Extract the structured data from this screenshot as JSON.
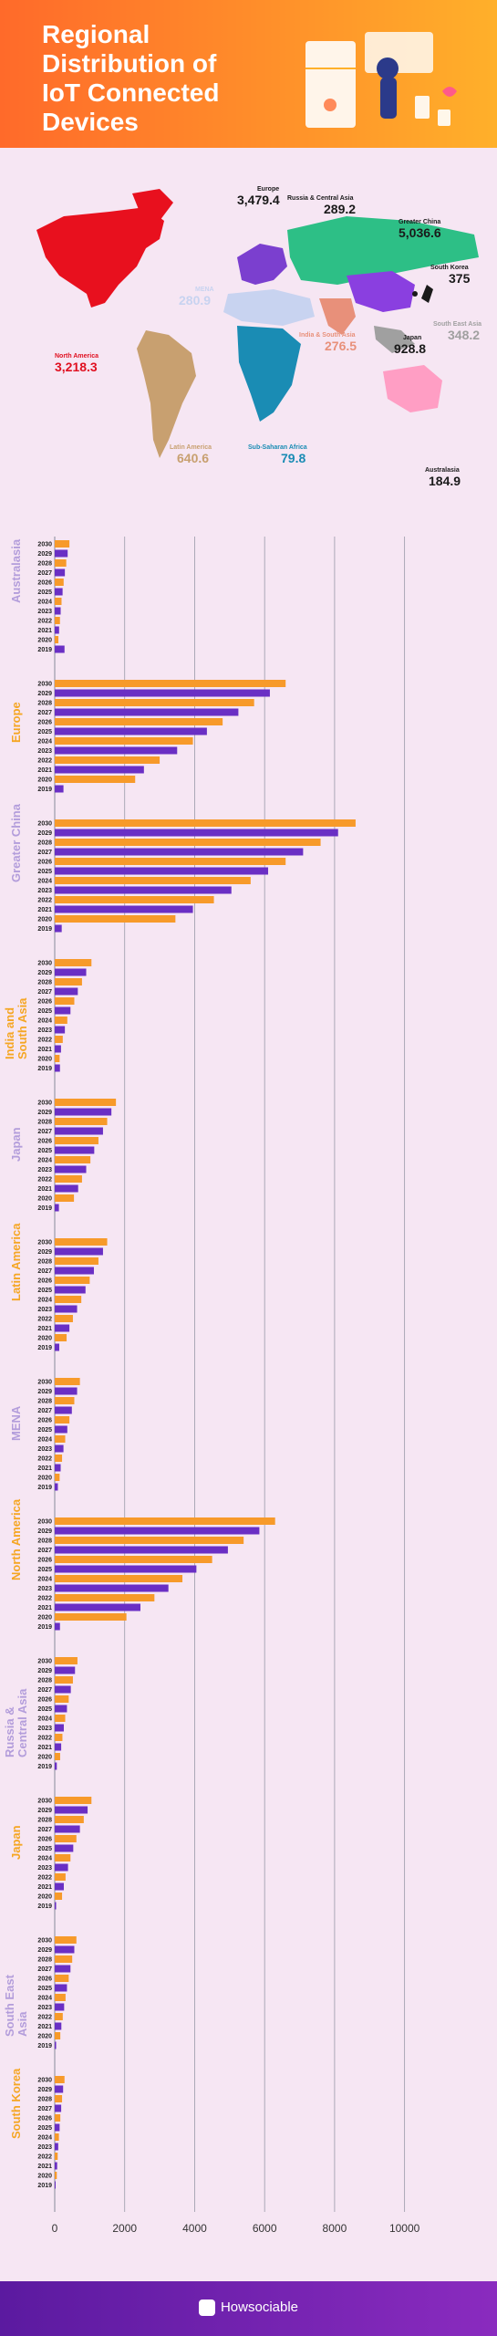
{
  "header": {
    "title_lines": [
      "Regional",
      "Distribution of",
      "IoT Connected",
      "Devices"
    ]
  },
  "map": {
    "regions": [
      {
        "name": "Russia & Central Asia",
        "value": "289.2",
        "color": "#1a1a1a"
      },
      {
        "name": "Europe",
        "value": "3,479.4",
        "color": "#1a1a1a"
      },
      {
        "name": "Greater China",
        "value": "5,036.6",
        "color": "#1a1a1a"
      },
      {
        "name": "South Korea",
        "value": "375",
        "color": "#1a1a1a"
      },
      {
        "name": "MENA",
        "value": "280.9",
        "color": "#c8d3f0"
      },
      {
        "name": "Japan",
        "value": "928.8",
        "color": "#1a1a1a"
      },
      {
        "name": "North America",
        "value": "3,218.3",
        "color": "#e01020"
      },
      {
        "name": "India & South Asia",
        "value": "276.5",
        "color": "#e8907a"
      },
      {
        "name": "South East Asia",
        "value": "348.2",
        "color": "#a0a0a0"
      },
      {
        "name": "Latin America",
        "value": "640.6",
        "color": "#c8a070"
      },
      {
        "name": "Sub-Saharan Africa",
        "value": "79.8",
        "color": "#1a8cb4"
      },
      {
        "name": "Australasia",
        "value": "184.9",
        "color": "#1a1a1a"
      }
    ]
  },
  "chart_data": {
    "type": "bar",
    "orientation": "horizontal",
    "years": [
      "2030",
      "2029",
      "2028",
      "2027",
      "2026",
      "2025",
      "2024",
      "2023",
      "2022",
      "2021",
      "2020",
      "2019"
    ],
    "xlim": [
      0,
      11000
    ],
    "xticks": [
      "0",
      "2000",
      "4000",
      "6000",
      "8000",
      "10000"
    ],
    "groups": [
      {
        "name": "Australasia",
        "color": "#b39ddb",
        "values": [
          420,
          370,
          330,
          290,
          255,
          225,
          195,
          170,
          150,
          125,
          105,
          280
        ]
      },
      {
        "name": "Europe",
        "color": "#f5a623",
        "values": [
          6600,
          6150,
          5700,
          5250,
          4800,
          4350,
          3950,
          3500,
          3000,
          2550,
          2300,
          250
        ]
      },
      {
        "name": "Greater China",
        "color": "#b39ddb",
        "values": [
          8600,
          8100,
          7600,
          7100,
          6600,
          6100,
          5600,
          5050,
          4550,
          3950,
          3450,
          200
        ]
      },
      {
        "name": "India and South Asia",
        "color": "#f5a623",
        "values": [
          1050,
          900,
          780,
          660,
          560,
          450,
          360,
          290,
          230,
          180,
          140,
          150
        ]
      },
      {
        "name": "Japan",
        "color": "#b39ddb",
        "values": [
          1750,
          1620,
          1500,
          1380,
          1250,
          1130,
          1020,
          900,
          780,
          670,
          550,
          120
        ]
      },
      {
        "name": "Latin America",
        "color": "#f5a623",
        "values": [
          1500,
          1380,
          1250,
          1120,
          1000,
          880,
          760,
          640,
          520,
          420,
          340,
          130
        ]
      },
      {
        "name": "MENA",
        "color": "#b39ddb",
        "values": [
          720,
          640,
          560,
          490,
          420,
          360,
          300,
          250,
          210,
          170,
          140,
          90
        ]
      },
      {
        "name": "North America",
        "color": "#f5a623",
        "values": [
          6300,
          5850,
          5400,
          4950,
          4500,
          4050,
          3650,
          3250,
          2850,
          2450,
          2050,
          150
        ]
      },
      {
        "name": "Russia & Central Asia",
        "color": "#b39ddb",
        "values": [
          650,
          580,
          520,
          460,
          400,
          350,
          300,
          260,
          220,
          185,
          155,
          60
        ]
      },
      {
        "name": "Japan",
        "color": "#f5a623",
        "values": [
          1050,
          940,
          830,
          720,
          620,
          530,
          450,
          380,
          310,
          260,
          210,
          40
        ]
      },
      {
        "name": "South East Asia",
        "color": "#b39ddb",
        "values": [
          620,
          560,
          500,
          450,
          400,
          350,
          310,
          270,
          230,
          190,
          160,
          40
        ]
      },
      {
        "name": "South Korea",
        "color": "#f5a623",
        "values": [
          280,
          240,
          210,
          185,
          160,
          140,
          120,
          100,
          85,
          70,
          60,
          25
        ]
      }
    ]
  },
  "footer": {
    "brand": "Howsociable"
  }
}
